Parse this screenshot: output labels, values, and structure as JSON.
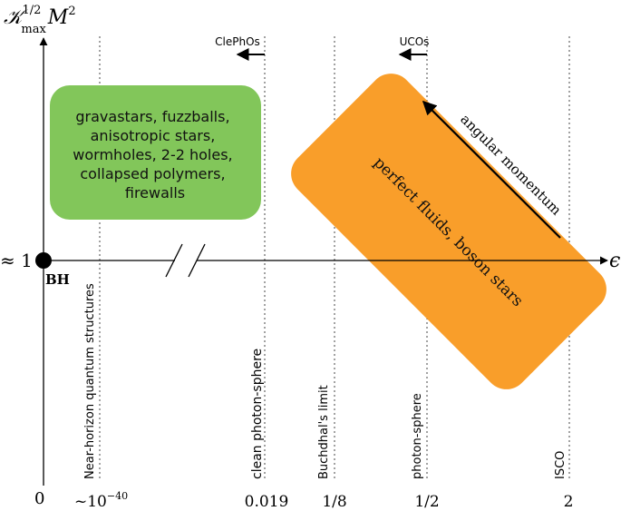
{
  "axes": {
    "y_label_base": "𝒦",
    "y_label_sup": "1/2",
    "y_label_sub": "max",
    "y_label_tail": "M",
    "y_label_tail_sup": "2",
    "x_label": "ϵ",
    "y_tick_one": "≈ 1",
    "origin": "0"
  },
  "bh_label": "BH",
  "thresholds": [
    {
      "id": "near-horizon",
      "tick": "~10",
      "tick_sup": "−40",
      "label": "Near-horizon quantum structures"
    },
    {
      "id": "clean-photon-sphere",
      "tick": "0.019",
      "label": "clean photon-sphere"
    },
    {
      "id": "buchdahl",
      "tick": "1/8",
      "label": "Buchdhal's limit"
    },
    {
      "id": "photon-sphere",
      "tick": "1/2",
      "label": "photon-sphere"
    },
    {
      "id": "isco",
      "tick": "2",
      "label": "ISCO"
    }
  ],
  "arrows": {
    "clephos": "ClePhOs",
    "ucos": "UCOs",
    "angular_momentum": "angular momentum"
  },
  "green_box": {
    "color": "#82c65a",
    "lines": [
      "gravastars, fuzzballs,",
      "anisotropic stars,",
      "wormholes, 2-2 holes,",
      "collapsed polymers,",
      "firewalls"
    ]
  },
  "orange_box": {
    "color": "#f99e2a",
    "text": "perfect fluids, boson stars"
  }
}
